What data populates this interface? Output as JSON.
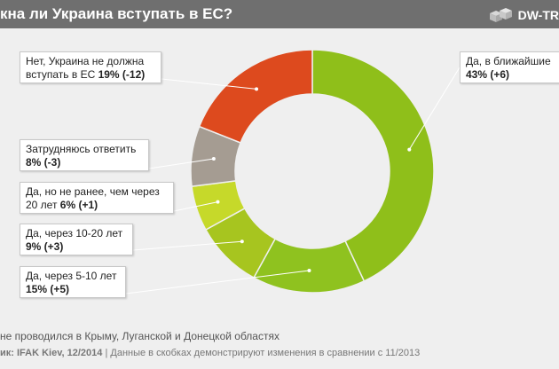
{
  "header": {
    "title": "кна ли Украина вступать в ЕС?",
    "brand": "DW-TR"
  },
  "chart_data": {
    "type": "pie",
    "subtype": "donut",
    "title": "кна ли Украина вступать в ЕС?",
    "categories": [
      "Да, в ближайшие",
      "Да, через 5-10 лет",
      "Да, через 10-20 лет",
      "Да, но не ранее, чем через 20 лет",
      "Затрудняюсь ответить",
      "Нет, Украина не должна вступать в ЕС"
    ],
    "values": [
      43,
      15,
      9,
      6,
      8,
      19
    ],
    "changes": [
      "(+6)",
      "(+5)",
      "(+3)",
      "(+1)",
      "(-3)",
      "(-12)"
    ],
    "colors": [
      "#8fbf1a",
      "#8fc21f",
      "#a7c51f",
      "#c6d92a",
      "#a59c92",
      "#dd4a1e"
    ],
    "legend": "callouts"
  },
  "labels": [
    {
      "line1": "Да, в ближайшие",
      "value": "43% (+6)"
    },
    {
      "line1": "Да, через 5-10 лет",
      "value": "15% (+5)"
    },
    {
      "line1": "Да, через 10-20 лет",
      "value": "9% (+3)"
    },
    {
      "line1": "Да, но не ранее, чем через",
      "prefix": "20 лет ",
      "value": "6% (+1)"
    },
    {
      "line1": "Затрудняюсь ответить",
      "value": "8% (-3)"
    },
    {
      "line1": "Нет, Украина не должна",
      "prefix": "вступать в ЕС ",
      "value": "19% (-12)"
    }
  ],
  "footnote": "не проводился в Крыму, Луганской и Донецкой областях",
  "source": {
    "label": "ик: IFAK Kiev, 12/2014",
    "text": " | Данные в скобках демонстрируют изменения в сравнении с 11/2013"
  }
}
